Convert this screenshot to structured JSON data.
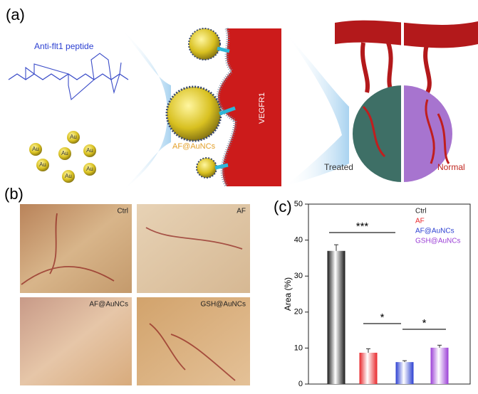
{
  "figure": {
    "panel_labels": [
      "(a)",
      "(b)",
      "(c)"
    ],
    "scheme": {
      "peptide_label": "Anti-flt1 peptide",
      "au_labels": [
        "Au",
        "Au",
        "Au",
        "Au",
        "Au",
        "Au",
        "Au"
      ],
      "nanocluster_label": "AF@AuNCs",
      "receptor_label": "VEGFR1",
      "treated_label": "Treated",
      "normal_label": "Normal"
    },
    "photos": [
      "Ctrl",
      "AF",
      "AF@AuNCs",
      "GSH@AuNCs"
    ]
  },
  "chart_data": {
    "type": "bar",
    "y_label": "Area (%)",
    "series": [
      {
        "name": "Ctrl",
        "color": "#1a1a1a",
        "values": [
          37
        ],
        "errors": [
          1.7
        ]
      },
      {
        "name": "AF",
        "color": "#e8262a",
        "values": [
          8.7
        ],
        "errors": [
          1.1
        ]
      },
      {
        "name": "AF@AuNCs",
        "color": "#2b3fd1",
        "values": [
          6.1
        ],
        "errors": [
          0.4
        ]
      },
      {
        "name": "GSH@AuNCs",
        "color": "#9b3fd6",
        "values": [
          10.1
        ],
        "errors": [
          0.7
        ]
      }
    ],
    "ylim": [
      0,
      50
    ],
    "yticks": [
      0,
      10,
      20,
      30,
      40,
      50
    ],
    "annotations": [
      "***",
      "*",
      "*"
    ]
  }
}
